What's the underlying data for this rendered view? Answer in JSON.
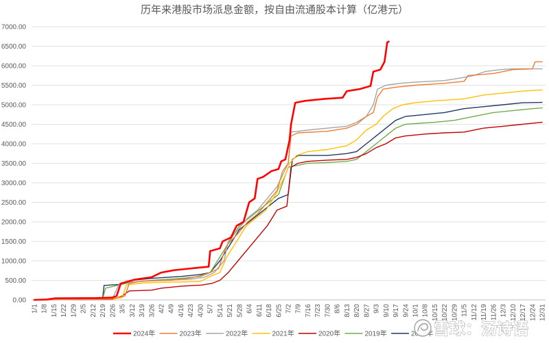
{
  "chart_data": {
    "type": "line",
    "title": "历年来港股市场派息金额，按自由流通股本计算（亿港元）",
    "xlabel": "",
    "ylabel": "",
    "ylim": [
      0,
      7000
    ],
    "x_range": [
      "1/1",
      "12/31"
    ],
    "grid": true,
    "legend": "bottom",
    "yticks": [
      "0.00",
      "500.00",
      "1000.00",
      "1500.00",
      "2000.00",
      "2500.00",
      "3000.00",
      "3500.00",
      "4000.00",
      "4500.00",
      "5000.00",
      "5500.00",
      "6000.00",
      "6500.00",
      "7000.00"
    ],
    "xticks": [
      "1/1",
      "1/8",
      "1/15",
      "1/22",
      "1/29",
      "2/5",
      "2/12",
      "2/19",
      "2/26",
      "3/5",
      "3/12",
      "3/19",
      "3/26",
      "4/2",
      "4/9",
      "4/16",
      "4/23",
      "4/30",
      "5/7",
      "5/14",
      "5/21",
      "5/28",
      "6/4",
      "6/11",
      "6/18",
      "6/25",
      "7/2",
      "7/9",
      "7/16",
      "7/23",
      "7/30",
      "8/6",
      "8/13",
      "8/20",
      "8/27",
      "9/3",
      "9/10",
      "9/17",
      "9/24",
      "10/1",
      "10/8",
      "10/15",
      "10/22",
      "10/29",
      "11/5",
      "11/12",
      "11/19",
      "11/26",
      "12/3",
      "12/10",
      "12/17",
      "12/24",
      "12/31"
    ],
    "series": [
      {
        "name": "2024年",
        "color": "#FF0000",
        "x": [
          "1/1",
          "1/10",
          "1/16",
          "2/14",
          "2/26",
          "3/1",
          "3/4",
          "3/10",
          "3/14",
          "3/26",
          "4/2",
          "4/11",
          "4/30",
          "5/6",
          "5/7",
          "5/14",
          "5/16",
          "5/22",
          "5/26",
          "5/31",
          "6/4",
          "6/8",
          "6/10",
          "6/14",
          "6/20",
          "6/25",
          "6/27",
          "6/30",
          "7/3",
          "7/4",
          "7/7",
          "7/14",
          "7/28",
          "8/10",
          "8/13",
          "8/22",
          "8/30",
          "9/1",
          "9/6",
          "9/9",
          "9/11",
          "9/12"
        ],
        "y": [
          0,
          10,
          40,
          45,
          60,
          100,
          420,
          480,
          520,
          580,
          700,
          760,
          830,
          850,
          1250,
          1320,
          1500,
          1600,
          1900,
          2000,
          2500,
          2600,
          3100,
          3150,
          3300,
          3350,
          3550,
          3600,
          4100,
          4500,
          5050,
          5100,
          5150,
          5180,
          5350,
          5400,
          5480,
          5850,
          5900,
          6100,
          6600,
          6620
        ]
      },
      {
        "name": "2023年",
        "color": "#ED7D31",
        "x": [
          "1/1",
          "1/15",
          "2/26",
          "3/7",
          "3/10",
          "3/19",
          "4/9",
          "4/23",
          "4/30",
          "5/7",
          "5/13",
          "5/19",
          "5/27",
          "6/3",
          "6/10",
          "6/17",
          "6/24",
          "6/28",
          "7/2",
          "7/4",
          "7/9",
          "7/30",
          "8/13",
          "8/20",
          "8/27",
          "9/1",
          "9/4",
          "9/8",
          "9/17",
          "10/1",
          "10/22",
          "11/5",
          "11/8",
          "11/26",
          "12/10",
          "12/24",
          "12/26",
          "12/31"
        ],
        "y": [
          0,
          20,
          30,
          100,
          420,
          480,
          500,
          560,
          620,
          700,
          800,
          1400,
          1700,
          2000,
          2200,
          2500,
          2800,
          3300,
          3500,
          4200,
          4280,
          4320,
          4400,
          4500,
          4700,
          4800,
          5200,
          5400,
          5450,
          5500,
          5550,
          5600,
          5750,
          5800,
          5900,
          5920,
          6100,
          6100
        ]
      },
      {
        "name": "2022年",
        "color": "#A5A5A5",
        "x": [
          "1/1",
          "2/19",
          "2/26",
          "3/3",
          "3/12",
          "4/2",
          "4/23",
          "5/3",
          "5/10",
          "5/17",
          "5/20",
          "5/27",
          "6/3",
          "6/10",
          "6/17",
          "6/24",
          "6/28",
          "7/2",
          "7/4",
          "7/16",
          "7/30",
          "8/13",
          "8/20",
          "8/27",
          "9/1",
          "9/4",
          "9/10",
          "9/20",
          "10/1",
          "10/22",
          "11/5",
          "11/12",
          "11/20",
          "12/1",
          "12/10",
          "12/31"
        ],
        "y": [
          0,
          20,
          30,
          420,
          460,
          500,
          530,
          580,
          700,
          1000,
          1500,
          1800,
          2100,
          2300,
          2600,
          2900,
          3200,
          3500,
          4300,
          4350,
          4400,
          4450,
          4550,
          4700,
          5000,
          5400,
          5500,
          5550,
          5580,
          5620,
          5700,
          5750,
          5850,
          5900,
          5920,
          5920
        ]
      },
      {
        "name": "2021年",
        "color": "#FFC000",
        "x": [
          "1/1",
          "2/26",
          "3/5",
          "3/8",
          "3/19",
          "4/2",
          "4/30",
          "5/7",
          "5/14",
          "5/19",
          "5/26",
          "6/2",
          "6/9",
          "6/16",
          "6/23",
          "6/30",
          "7/3",
          "7/8",
          "7/16",
          "7/30",
          "8/13",
          "8/20",
          "8/27",
          "9/3",
          "9/8",
          "9/15",
          "9/22",
          "10/1",
          "10/15",
          "11/5",
          "11/19",
          "12/3",
          "12/17",
          "12/31"
        ],
        "y": [
          0,
          20,
          60,
          380,
          430,
          450,
          470,
          600,
          700,
          1100,
          1500,
          1900,
          2100,
          2300,
          2700,
          3200,
          3500,
          3700,
          3800,
          3850,
          3950,
          4100,
          4350,
          4500,
          4700,
          4900,
          5000,
          5050,
          5100,
          5150,
          5250,
          5300,
          5350,
          5380
        ]
      },
      {
        "name": "2020年",
        "color": "#C00000",
        "x": [
          "1/1",
          "2/26",
          "3/5",
          "3/10",
          "3/26",
          "4/2",
          "4/16",
          "5/1",
          "5/8",
          "5/14",
          "5/20",
          "5/27",
          "6/3",
          "6/10",
          "6/17",
          "6/24",
          "7/1",
          "7/4",
          "7/9",
          "7/16",
          "7/30",
          "8/13",
          "8/20",
          "8/27",
          "9/3",
          "9/10",
          "9/17",
          "9/24",
          "10/8",
          "10/22",
          "11/5",
          "11/19",
          "12/3",
          "12/17",
          "12/31"
        ],
        "y": [
          0,
          10,
          100,
          230,
          250,
          300,
          350,
          380,
          420,
          500,
          700,
          1000,
          1300,
          1600,
          1900,
          2300,
          2400,
          3400,
          3500,
          3550,
          3580,
          3600,
          3650,
          3750,
          3900,
          4000,
          4150,
          4200,
          4250,
          4280,
          4300,
          4400,
          4450,
          4500,
          4550
        ]
      },
      {
        "name": "2019年",
        "color": "#70AD47",
        "x": [
          "1/1",
          "2/12",
          "2/19",
          "2/21",
          "3/5",
          "3/12",
          "3/26",
          "4/16",
          "4/30",
          "5/7",
          "5/14",
          "5/21",
          "5/28",
          "6/4",
          "6/11",
          "6/18",
          "6/25",
          "6/28",
          "7/2",
          "7/9",
          "7/16",
          "7/30",
          "8/13",
          "8/20",
          "8/27",
          "9/3",
          "9/10",
          "9/17",
          "9/24",
          "10/15",
          "10/29",
          "11/12",
          "11/26",
          "12/10",
          "12/24",
          "12/31"
        ],
        "y": [
          0,
          10,
          20,
          300,
          400,
          450,
          500,
          550,
          600,
          700,
          1100,
          1500,
          1900,
          2100,
          2300,
          2500,
          2700,
          3000,
          3400,
          3450,
          3500,
          3520,
          3550,
          3600,
          3800,
          4000,
          4200,
          4400,
          4500,
          4550,
          4600,
          4700,
          4800,
          4850,
          4900,
          4920
        ]
      },
      {
        "name": "2018年",
        "color": "#203864",
        "x": [
          "1/1",
          "1/22",
          "2/19",
          "2/20",
          "3/5",
          "3/12",
          "3/26",
          "4/16",
          "4/30",
          "5/7",
          "5/14",
          "5/21",
          "5/28",
          "6/4",
          "6/11",
          "6/18",
          "6/25",
          "7/2",
          "7/5",
          "7/9",
          "7/30",
          "8/13",
          "8/20",
          "8/27",
          "9/3",
          "9/10",
          "9/17",
          "9/24",
          "10/8",
          "10/22",
          "11/5",
          "11/19",
          "12/3",
          "12/17",
          "12/31"
        ],
        "y": [
          0,
          30,
          40,
          370,
          400,
          500,
          550,
          600,
          650,
          700,
          1000,
          1400,
          1800,
          2000,
          2200,
          2400,
          2600,
          2700,
          3600,
          3700,
          3700,
          3750,
          3800,
          4000,
          4200,
          4400,
          4600,
          4700,
          4750,
          4800,
          4900,
          4950,
          5000,
          5050,
          5060
        ]
      }
    ]
  },
  "watermark": {
    "text": "雪球：汤诗语",
    "icon": "snowball-logo-icon"
  }
}
